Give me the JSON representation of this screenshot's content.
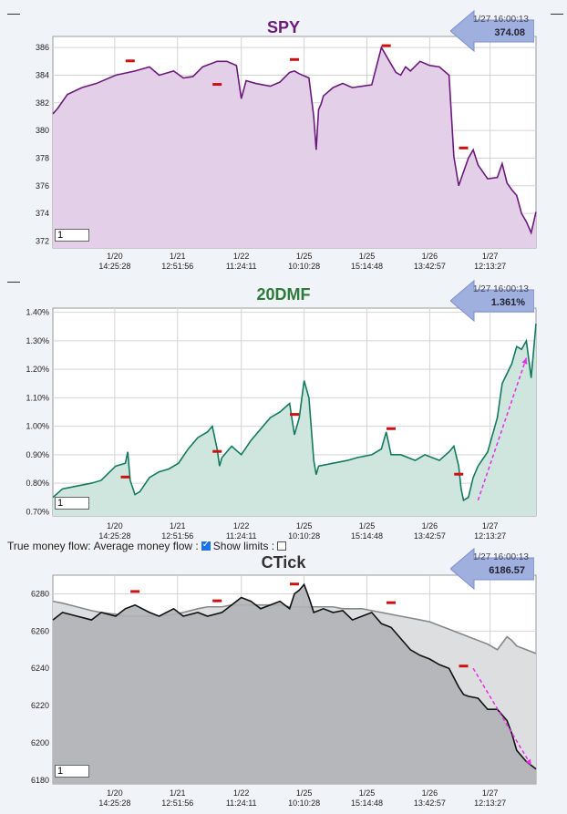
{
  "colors": {
    "spy_line": "#6b1a7c",
    "spy_fill": "#e3d0e8",
    "dmf_line": "#137a5e",
    "dmf_fill": "#cfe6df",
    "ctick_line": "#111111",
    "ctick_fill": "#b0b3b6",
    "ctick_avg_line": "#888888",
    "ctick_avg_fill": "#dcdee0",
    "arrow": "#e62ee6",
    "marker": "#cc1111",
    "title_spy": "#6b1a7c",
    "title_dmf": "#2e7a3a",
    "title_ctick": "#333333"
  },
  "x_ticks": [
    {
      "date": "1/20",
      "time": "14:25:28"
    },
    {
      "date": "1/21",
      "time": "12:51:56"
    },
    {
      "date": "1/22",
      "time": "11:24:11"
    },
    {
      "date": "1/25",
      "time": "10:10:28"
    },
    {
      "date": "1/25",
      "time": "15:14:48"
    },
    {
      "date": "1/26",
      "time": "13:42:57"
    },
    {
      "date": "1/27",
      "time": "12:13:27"
    }
  ],
  "panels": {
    "spy": {
      "title": "SPY",
      "readout_time": "1/27 16:00:13",
      "readout_value": "374.08",
      "zoom": "1",
      "collapse": "—"
    },
    "dmf": {
      "title": "20DMF",
      "readout_time": "1/27 16:00:13",
      "readout_value": "1.361%",
      "zoom": "1",
      "collapse": "—"
    },
    "ctick": {
      "title": "CTick",
      "readout_time": "1/27 16:00:13",
      "readout_value": "6186.57",
      "zoom": "1",
      "collapse": "—"
    }
  },
  "controls": {
    "true_money_flow": "True money flow:",
    "avg_money_flow": "Average money flow :",
    "avg_money_flow_checked": true,
    "show_limits": "Show limits :",
    "show_limits_checked": false
  },
  "chart_data": [
    {
      "type": "area",
      "title": "SPY",
      "ylim": [
        371.5,
        386.8
      ],
      "yticks": [
        372,
        374,
        376,
        378,
        380,
        382,
        384,
        386
      ],
      "ytick_labels": [
        "372",
        "374",
        "376",
        "378",
        "380",
        "382",
        "384",
        "386"
      ],
      "x": [
        0,
        0.01,
        0.03,
        0.06,
        0.09,
        0.13,
        0.17,
        0.2,
        0.22,
        0.25,
        0.27,
        0.29,
        0.31,
        0.34,
        0.36,
        0.38,
        0.39,
        0.4,
        0.42,
        0.45,
        0.47,
        0.49,
        0.5,
        0.51,
        0.53,
        0.54,
        0.545,
        0.55,
        0.555,
        0.56,
        0.58,
        0.6,
        0.62,
        0.64,
        0.66,
        0.68,
        0.7,
        0.71,
        0.72,
        0.73,
        0.74,
        0.76,
        0.78,
        0.8,
        0.82,
        0.83,
        0.84,
        0.86,
        0.87,
        0.88,
        0.9,
        0.92,
        0.93,
        0.94,
        0.95,
        0.96,
        0.97,
        0.98,
        0.99,
        1.0
      ],
      "values": [
        381.2,
        381.6,
        382.6,
        383.1,
        383.4,
        384.0,
        384.3,
        384.6,
        384.0,
        384.3,
        383.8,
        383.9,
        384.6,
        385.0,
        385.0,
        384.7,
        382.3,
        383.6,
        383.4,
        383.2,
        383.5,
        384.2,
        384.3,
        384.1,
        383.8,
        381.0,
        378.6,
        381.5,
        381.9,
        382.5,
        383.1,
        383.4,
        383.1,
        383.2,
        383.3,
        386.0,
        384.8,
        384.2,
        384.0,
        384.6,
        384.3,
        385.0,
        384.7,
        384.6,
        384.0,
        378.1,
        376.0,
        378.0,
        378.6,
        377.5,
        376.5,
        376.6,
        377.6,
        376.2,
        375.7,
        375.3,
        374.0,
        373.4,
        372.6,
        374.1
      ],
      "markers": [
        {
          "x": 0.16,
          "y": 385
        },
        {
          "x": 0.34,
          "y": 383.3
        },
        {
          "x": 0.5,
          "y": 385.1
        },
        {
          "x": 0.69,
          "y": 386.1
        },
        {
          "x": 0.85,
          "y": 378.7
        }
      ],
      "annotations": []
    },
    {
      "type": "area",
      "title": "20DMF",
      "ylim": [
        0.685,
        1.415
      ],
      "yticks": [
        0.7,
        0.8,
        0.9,
        1.0,
        1.1,
        1.2,
        1.3,
        1.4
      ],
      "ytick_labels": [
        "0.70%",
        "0.80%",
        "0.90%",
        "1.00%",
        "1.10%",
        "1.20%",
        "1.30%",
        "1.40%"
      ],
      "x": [
        0,
        0.02,
        0.05,
        0.08,
        0.1,
        0.13,
        0.15,
        0.155,
        0.16,
        0.17,
        0.18,
        0.2,
        0.22,
        0.24,
        0.26,
        0.28,
        0.3,
        0.32,
        0.33,
        0.34,
        0.345,
        0.35,
        0.37,
        0.39,
        0.41,
        0.43,
        0.45,
        0.47,
        0.49,
        0.5,
        0.51,
        0.52,
        0.53,
        0.54,
        0.545,
        0.55,
        0.58,
        0.61,
        0.63,
        0.66,
        0.68,
        0.69,
        0.7,
        0.72,
        0.75,
        0.77,
        0.8,
        0.82,
        0.83,
        0.84,
        0.845,
        0.85,
        0.86,
        0.87,
        0.88,
        0.9,
        0.92,
        0.93,
        0.95,
        0.96,
        0.97,
        0.98,
        0.99,
        1.0
      ],
      "values": [
        0.75,
        0.78,
        0.79,
        0.8,
        0.81,
        0.86,
        0.87,
        0.91,
        0.81,
        0.76,
        0.77,
        0.82,
        0.84,
        0.85,
        0.87,
        0.92,
        0.96,
        0.98,
        1.0,
        0.92,
        0.86,
        0.89,
        0.93,
        0.9,
        0.95,
        0.99,
        1.03,
        1.05,
        1.08,
        0.97,
        1.03,
        1.16,
        1.1,
        0.88,
        0.83,
        0.86,
        0.87,
        0.88,
        0.89,
        0.9,
        0.92,
        0.98,
        0.9,
        0.9,
        0.88,
        0.9,
        0.88,
        0.91,
        0.93,
        0.86,
        0.78,
        0.74,
        0.75,
        0.82,
        0.86,
        0.91,
        1.03,
        1.15,
        1.22,
        1.28,
        1.27,
        1.3,
        1.17,
        1.36
      ],
      "markers": [
        {
          "x": 0.15,
          "y": 0.82
        },
        {
          "x": 0.34,
          "y": 0.91
        },
        {
          "x": 0.5,
          "y": 1.04
        },
        {
          "x": 0.7,
          "y": 0.99
        },
        {
          "x": 0.84,
          "y": 0.83
        }
      ],
      "annotations": [
        {
          "kind": "arrow",
          "from": [
            0.88,
            0.74
          ],
          "to": [
            0.98,
            1.24
          ]
        }
      ]
    },
    {
      "type": "area",
      "title": "CTick",
      "ylim": [
        6178,
        6290
      ],
      "yticks": [
        6180,
        6200,
        6220,
        6240,
        6260,
        6280
      ],
      "ytick_labels": [
        "6180",
        "6200",
        "6220",
        "6240",
        "6260",
        "6280"
      ],
      "x": [
        0,
        0.02,
        0.05,
        0.08,
        0.1,
        0.13,
        0.15,
        0.17,
        0.2,
        0.22,
        0.25,
        0.27,
        0.3,
        0.32,
        0.35,
        0.37,
        0.39,
        0.41,
        0.43,
        0.45,
        0.47,
        0.49,
        0.5,
        0.51,
        0.52,
        0.53,
        0.54,
        0.56,
        0.58,
        0.6,
        0.62,
        0.64,
        0.66,
        0.68,
        0.7,
        0.72,
        0.74,
        0.76,
        0.78,
        0.8,
        0.82,
        0.84,
        0.85,
        0.86,
        0.88,
        0.9,
        0.92,
        0.94,
        0.95,
        0.96,
        0.98,
        1.0
      ],
      "values": [
        6266,
        6270,
        6268,
        6266,
        6270,
        6268,
        6272,
        6274,
        6270,
        6268,
        6272,
        6268,
        6270,
        6268,
        6270,
        6274,
        6278,
        6276,
        6272,
        6274,
        6276,
        6272,
        6280,
        6282,
        6285,
        6278,
        6270,
        6272,
        6270,
        6271,
        6266,
        6268,
        6270,
        6264,
        6262,
        6256,
        6250,
        6247,
        6245,
        6242,
        6240,
        6230,
        6226,
        6225,
        6224,
        6218,
        6218,
        6212,
        6205,
        6196,
        6190,
        6186
      ],
      "avg_values": [
        6276,
        6275,
        6273,
        6271,
        6270,
        6269,
        6268,
        6268,
        6268,
        6268,
        6269,
        6270,
        6272,
        6273,
        6273,
        6274,
        6274,
        6274,
        6274,
        6274,
        6274,
        6273,
        6273,
        6273,
        6273,
        6273,
        6273,
        6273,
        6273,
        6272,
        6272,
        6272,
        6271,
        6270,
        6269,
        6268,
        6267,
        6266,
        6265,
        6263,
        6261,
        6259,
        6258,
        6257,
        6255,
        6253,
        6250,
        6257,
        6255,
        6252,
        6250,
        6248
      ],
      "markers": [
        {
          "x": 0.17,
          "y": 6281
        },
        {
          "x": 0.34,
          "y": 6276
        },
        {
          "x": 0.5,
          "y": 6285
        },
        {
          "x": 0.7,
          "y": 6275
        },
        {
          "x": 0.85,
          "y": 6241
        }
      ],
      "annotations": [
        {
          "kind": "arrow",
          "from": [
            0.87,
            6240
          ],
          "to": [
            0.99,
            6188
          ]
        }
      ]
    }
  ]
}
